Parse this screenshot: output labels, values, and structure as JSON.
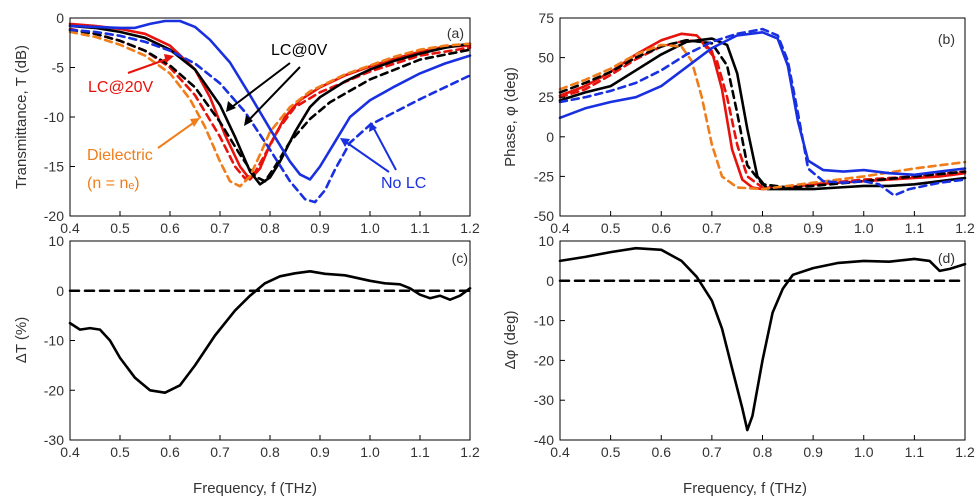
{
  "figure": {
    "shared_xlabel": "Frequency, f (THz)"
  },
  "colors": {
    "lc0": "#000000",
    "lc20": "#e8120c",
    "dielectric": "#f07d1a",
    "nolc": "#1930e0"
  },
  "chart_data": [
    {
      "id": "a",
      "type": "line",
      "panel_label": "(a)",
      "title": "",
      "xlabel": "",
      "ylabel": "Transmittance, T (dB)",
      "xlim": [
        0.4,
        1.2
      ],
      "ylim": [
        -20,
        0
      ],
      "xticks": [
        0.4,
        0.5,
        0.6,
        0.7,
        0.8,
        0.9,
        1.0,
        1.1,
        1.2
      ],
      "yticks": [
        -20,
        -15,
        -10,
        -5,
        0
      ],
      "grid": false,
      "series": [
        {
          "key": "lc20_solid",
          "color_key": "lc20",
          "dash": "solid",
          "x": [
            0.4,
            0.45,
            0.5,
            0.55,
            0.6,
            0.65,
            0.68,
            0.71,
            0.74,
            0.76,
            0.78,
            0.8,
            0.83,
            0.86,
            0.9,
            0.95,
            1.0,
            1.05,
            1.1,
            1.15,
            1.2
          ],
          "y": [
            -0.6,
            -0.8,
            -1.1,
            -1.6,
            -2.8,
            -5.2,
            -8.0,
            -11.8,
            -15.0,
            -16.3,
            -15.2,
            -12.8,
            -10.0,
            -8.3,
            -7.0,
            -5.8,
            -4.9,
            -4.1,
            -3.4,
            -2.9,
            -2.8
          ]
        },
        {
          "key": "lc20_dashed",
          "color_key": "lc20",
          "dash": "dashed",
          "x": [
            0.4,
            0.45,
            0.5,
            0.55,
            0.6,
            0.65,
            0.7,
            0.73,
            0.75,
            0.77,
            0.79,
            0.82,
            0.85,
            0.9,
            1.0,
            1.1,
            1.2
          ],
          "y": [
            -1.1,
            -1.6,
            -2.3,
            -3.3,
            -5.0,
            -7.8,
            -12.0,
            -15.0,
            -16.2,
            -15.6,
            -13.8,
            -11.0,
            -9.0,
            -7.5,
            -5.4,
            -3.8,
            -3.0
          ]
        },
        {
          "key": "lc0_solid",
          "color_key": "lc0",
          "dash": "solid",
          "x": [
            0.4,
            0.45,
            0.5,
            0.55,
            0.6,
            0.65,
            0.7,
            0.73,
            0.76,
            0.78,
            0.8,
            0.82,
            0.85,
            0.88,
            0.9,
            0.95,
            1.0,
            1.05,
            1.1,
            1.15,
            1.2
          ],
          "y": [
            -0.8,
            -1.0,
            -1.4,
            -2.0,
            -3.2,
            -5.2,
            -8.8,
            -12.0,
            -15.5,
            -16.8,
            -16.1,
            -14.5,
            -11.5,
            -9.0,
            -8.0,
            -6.4,
            -5.2,
            -4.3,
            -3.6,
            -3.0,
            -2.6
          ]
        },
        {
          "key": "lc0_dashed",
          "color_key": "lc0",
          "dash": "dashed",
          "x": [
            0.4,
            0.45,
            0.5,
            0.55,
            0.6,
            0.65,
            0.7,
            0.74,
            0.77,
            0.79,
            0.81,
            0.84,
            0.88,
            0.92,
            1.0,
            1.1,
            1.2
          ],
          "y": [
            -1.2,
            -1.6,
            -2.3,
            -3.3,
            -4.8,
            -7.0,
            -10.5,
            -13.8,
            -16.0,
            -16.5,
            -15.0,
            -12.5,
            -10.2,
            -8.5,
            -6.2,
            -4.2,
            -3.2
          ]
        },
        {
          "key": "dielectric",
          "color_key": "dielectric",
          "dash": "dashed",
          "x": [
            0.4,
            0.45,
            0.5,
            0.55,
            0.6,
            0.64,
            0.67,
            0.7,
            0.72,
            0.74,
            0.76,
            0.78,
            0.8,
            0.84,
            0.88,
            0.95,
            1.0,
            1.05,
            1.1,
            1.15,
            1.2
          ],
          "y": [
            -1.4,
            -1.9,
            -2.7,
            -3.8,
            -5.6,
            -8.2,
            -11.0,
            -14.5,
            -16.5,
            -17.0,
            -16.0,
            -13.8,
            -11.5,
            -9.0,
            -7.4,
            -5.7,
            -4.8,
            -3.9,
            -3.2,
            -2.8,
            -2.6
          ]
        },
        {
          "key": "nolc_solid",
          "color_key": "nolc",
          "dash": "solid",
          "x": [
            0.4,
            0.45,
            0.5,
            0.53,
            0.56,
            0.59,
            0.62,
            0.65,
            0.68,
            0.72,
            0.76,
            0.8,
            0.84,
            0.86,
            0.88,
            0.9,
            0.93,
            0.96,
            1.0,
            1.05,
            1.1,
            1.15,
            1.2
          ],
          "y": [
            -0.8,
            -0.9,
            -1.0,
            -1.0,
            -0.6,
            -0.3,
            -0.3,
            -0.9,
            -2.2,
            -4.5,
            -7.8,
            -11.2,
            -14.5,
            -15.8,
            -16.3,
            -15.0,
            -12.5,
            -10.0,
            -8.3,
            -6.9,
            -5.6,
            -4.6,
            -3.8
          ]
        },
        {
          "key": "nolc_dashed",
          "color_key": "nolc",
          "dash": "dashed",
          "x": [
            0.4,
            0.45,
            0.5,
            0.55,
            0.6,
            0.65,
            0.7,
            0.75,
            0.8,
            0.84,
            0.87,
            0.89,
            0.91,
            0.93,
            0.96,
            1.0,
            1.05,
            1.1,
            1.15,
            1.2
          ],
          "y": [
            -1.2,
            -1.4,
            -1.8,
            -2.4,
            -3.3,
            -4.6,
            -6.6,
            -9.5,
            -13.3,
            -16.5,
            -18.3,
            -18.6,
            -17.4,
            -15.3,
            -12.6,
            -10.8,
            -9.5,
            -8.2,
            -7.0,
            -5.8
          ]
        }
      ],
      "annotations": [
        {
          "text": "LC@0V",
          "color_key": "lc0"
        },
        {
          "text": "LC@20V",
          "color_key": "lc20"
        },
        {
          "text": "Dielectric",
          "color_key": "dielectric"
        },
        {
          "text": "(n = nₑ)",
          "color_key": "dielectric"
        },
        {
          "text": "No LC",
          "color_key": "nolc"
        }
      ]
    },
    {
      "id": "b",
      "type": "line",
      "panel_label": "(b)",
      "title": "",
      "xlabel": "",
      "ylabel": "Phase, φ (deg)",
      "xlim": [
        0.4,
        1.2
      ],
      "ylim": [
        -50,
        75
      ],
      "xticks": [
        0.4,
        0.5,
        0.6,
        0.7,
        0.8,
        0.9,
        1.0,
        1.1,
        1.2
      ],
      "yticks": [
        -50,
        -25,
        0,
        25,
        50,
        75
      ],
      "grid": false,
      "series": [
        {
          "key": "lc20_solid",
          "color_key": "lc20",
          "dash": "solid",
          "x": [
            0.4,
            0.45,
            0.5,
            0.55,
            0.6,
            0.64,
            0.67,
            0.7,
            0.72,
            0.74,
            0.76,
            0.78,
            0.8,
            0.85,
            0.9,
            0.95,
            1.0,
            1.05,
            1.1,
            1.15,
            1.2
          ],
          "y": [
            26,
            32,
            41,
            52,
            61,
            65,
            64,
            54,
            30,
            -8,
            -27,
            -32,
            -33,
            -32,
            -30,
            -29,
            -28,
            -27,
            -26,
            -25,
            -23
          ]
        },
        {
          "key": "lc20_dashed",
          "color_key": "lc20",
          "dash": "dashed",
          "x": [
            0.4,
            0.45,
            0.5,
            0.55,
            0.6,
            0.65,
            0.68,
            0.71,
            0.73,
            0.75,
            0.77,
            0.8,
            0.85,
            0.9,
            1.0,
            1.1,
            1.2
          ],
          "y": [
            25,
            30,
            39,
            49,
            57,
            61,
            60,
            48,
            25,
            -5,
            -25,
            -32,
            -32,
            -30,
            -27,
            -25,
            -22
          ]
        },
        {
          "key": "lc0_solid",
          "color_key": "lc0",
          "dash": "solid",
          "x": [
            0.4,
            0.45,
            0.5,
            0.55,
            0.6,
            0.65,
            0.7,
            0.73,
            0.75,
            0.77,
            0.79,
            0.81,
            0.84,
            0.9,
            0.95,
            1.0,
            1.05,
            1.1,
            1.15,
            1.2
          ],
          "y": [
            23,
            28,
            32,
            42,
            52,
            60,
            62,
            58,
            40,
            5,
            -25,
            -33,
            -33,
            -33,
            -32,
            -31,
            -31,
            -30,
            -28,
            -26
          ]
        },
        {
          "key": "lc0_dashed",
          "color_key": "lc0",
          "dash": "dashed",
          "x": [
            0.4,
            0.45,
            0.5,
            0.55,
            0.6,
            0.65,
            0.7,
            0.73,
            0.75,
            0.77,
            0.8,
            0.85,
            0.9,
            1.0,
            1.1,
            1.2
          ],
          "y": [
            28,
            34,
            41,
            50,
            57,
            61,
            59,
            45,
            15,
            -18,
            -30,
            -32,
            -31,
            -28,
            -25,
            -22
          ]
        },
        {
          "key": "dielectric",
          "color_key": "dielectric",
          "dash": "dashed",
          "x": [
            0.4,
            0.45,
            0.5,
            0.55,
            0.6,
            0.64,
            0.66,
            0.68,
            0.7,
            0.72,
            0.75,
            0.8,
            0.85,
            0.9,
            1.0,
            1.1,
            1.2
          ],
          "y": [
            30,
            36,
            43,
            52,
            58,
            57,
            48,
            25,
            -5,
            -25,
            -32,
            -33,
            -31,
            -29,
            -25,
            -20,
            -16
          ]
        },
        {
          "key": "nolc_solid",
          "color_key": "nolc",
          "dash": "solid",
          "x": [
            0.4,
            0.45,
            0.5,
            0.55,
            0.6,
            0.65,
            0.7,
            0.75,
            0.8,
            0.83,
            0.85,
            0.87,
            0.89,
            0.92,
            0.96,
            1.0,
            1.05,
            1.1,
            1.15,
            1.2
          ],
          "y": [
            12,
            18,
            22,
            25,
            32,
            44,
            56,
            64,
            66,
            62,
            45,
            10,
            -15,
            -21,
            -22,
            -21,
            -23,
            -24,
            -22,
            -20
          ]
        },
        {
          "key": "nolc_dashed",
          "color_key": "nolc",
          "dash": "dashed",
          "x": [
            0.4,
            0.45,
            0.5,
            0.55,
            0.6,
            0.65,
            0.7,
            0.75,
            0.8,
            0.83,
            0.85,
            0.87,
            0.89,
            0.92,
            0.96,
            1.0,
            1.03,
            1.06,
            1.09,
            1.12,
            1.15,
            1.2
          ],
          "y": [
            22,
            25,
            29,
            34,
            42,
            52,
            60,
            65,
            68,
            64,
            48,
            15,
            -20,
            -28,
            -29,
            -28,
            -30,
            -37,
            -33,
            -31,
            -29,
            -27
          ]
        }
      ],
      "annotations": []
    },
    {
      "id": "c",
      "type": "line",
      "panel_label": "(c)",
      "title": "",
      "xlabel": "Frequency, f (THz)",
      "ylabel": "ΔT (%)",
      "xlim": [
        0.4,
        1.2
      ],
      "ylim": [
        -30,
        10
      ],
      "xticks": [
        0.4,
        0.5,
        0.6,
        0.7,
        0.8,
        0.9,
        1.0,
        1.1,
        1.2
      ],
      "yticks": [
        -30,
        -20,
        -10,
        0,
        10
      ],
      "grid": false,
      "series": [
        {
          "key": "delta_t",
          "color_key": "lc0",
          "dash": "solid",
          "x": [
            0.4,
            0.42,
            0.44,
            0.46,
            0.48,
            0.5,
            0.53,
            0.56,
            0.59,
            0.62,
            0.65,
            0.69,
            0.73,
            0.76,
            0.79,
            0.82,
            0.85,
            0.88,
            0.91,
            0.95,
            1.0,
            1.03,
            1.06,
            1.08,
            1.1,
            1.12,
            1.14,
            1.16,
            1.18,
            1.2
          ],
          "y": [
            -6.5,
            -7.8,
            -7.5,
            -7.8,
            -10.0,
            -13.5,
            -17.5,
            -20.0,
            -20.5,
            -19.0,
            -15.0,
            -9.0,
            -4.0,
            -1.0,
            1.5,
            2.9,
            3.5,
            3.9,
            3.4,
            3.1,
            2.0,
            1.5,
            1.3,
            0.5,
            -0.8,
            -1.5,
            -1.0,
            -1.8,
            -1.0,
            0.5
          ]
        },
        {
          "key": "zero_line",
          "color_key": "lc0",
          "dash": "dashed",
          "x": [
            0.4,
            1.2
          ],
          "y": [
            0,
            0
          ]
        }
      ],
      "annotations": []
    },
    {
      "id": "d",
      "type": "line",
      "panel_label": "(d)",
      "title": "",
      "xlabel": "Frequency, f (THz)",
      "ylabel": "Δφ (deg)",
      "xlim": [
        0.4,
        1.2
      ],
      "ylim": [
        -40,
        10
      ],
      "xticks": [
        0.4,
        0.5,
        0.6,
        0.7,
        0.8,
        0.9,
        1.0,
        1.1,
        1.2
      ],
      "yticks": [
        -40,
        -30,
        -20,
        -10,
        0,
        10
      ],
      "grid": false,
      "series": [
        {
          "key": "delta_phi",
          "color_key": "lc0",
          "dash": "solid",
          "x": [
            0.4,
            0.45,
            0.5,
            0.55,
            0.6,
            0.64,
            0.67,
            0.7,
            0.72,
            0.74,
            0.76,
            0.77,
            0.78,
            0.8,
            0.82,
            0.84,
            0.86,
            0.9,
            0.95,
            1.0,
            1.05,
            1.1,
            1.13,
            1.15,
            1.17,
            1.2
          ],
          "y": [
            5.0,
            6.0,
            7.2,
            8.2,
            7.8,
            5.0,
            1.0,
            -5.0,
            -12.0,
            -22.0,
            -32.0,
            -37.5,
            -34.0,
            -20.0,
            -8.0,
            -2.0,
            1.5,
            3.2,
            4.5,
            5.0,
            4.8,
            5.5,
            5.0,
            2.5,
            3.0,
            4.2
          ]
        },
        {
          "key": "zero_line",
          "color_key": "lc0",
          "dash": "dashed",
          "x": [
            0.4,
            1.2
          ],
          "y": [
            0,
            0
          ]
        }
      ],
      "annotations": []
    }
  ]
}
